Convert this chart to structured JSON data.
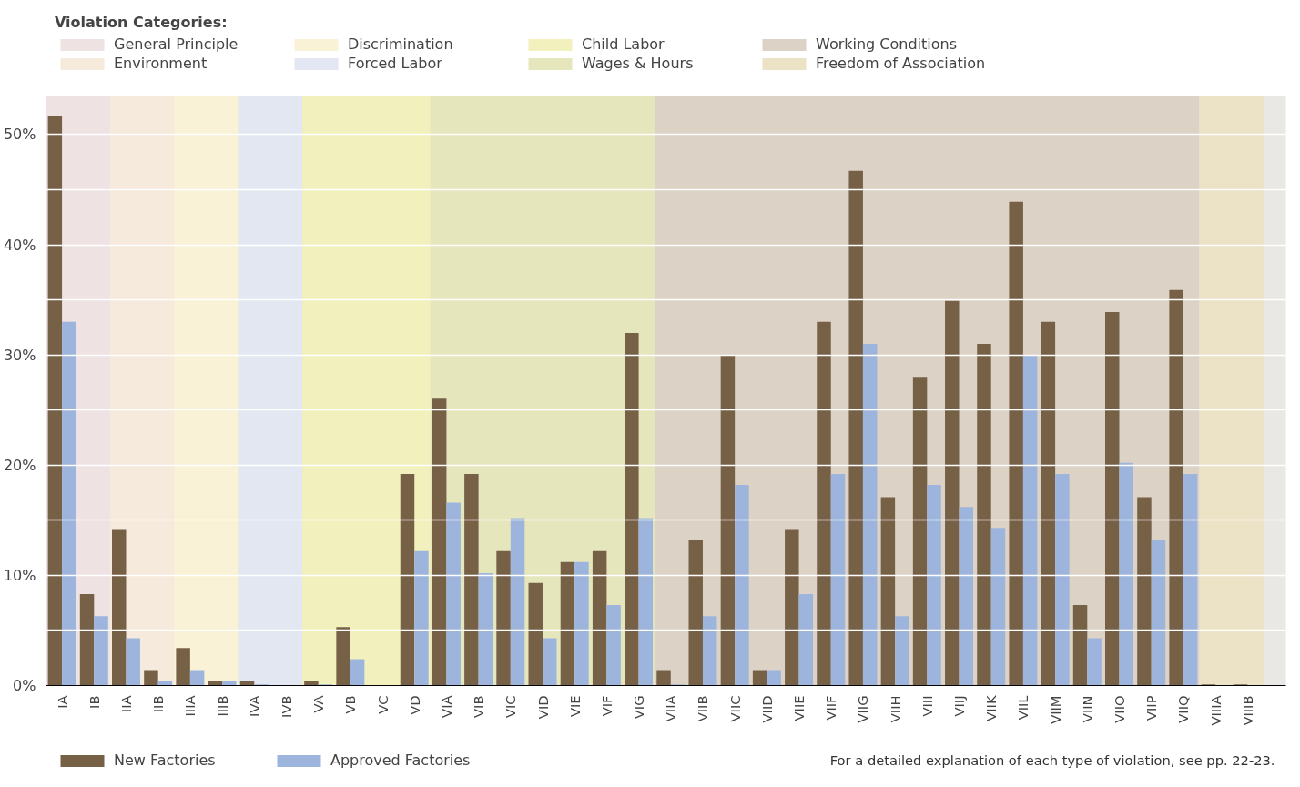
{
  "chart_data": {
    "type": "bar",
    "categories": [
      "IA",
      "IB",
      "IIA",
      "IIB",
      "IIIA",
      "IIIB",
      "IVA",
      "IVB",
      "VA",
      "VB",
      "VC",
      "VD",
      "VIA",
      "VIB",
      "VIC",
      "VID",
      "VIE",
      "VIF",
      "VIG",
      "VIIA",
      "VIIB",
      "VIIC",
      "VIID",
      "VIIE",
      "VIIF",
      "VIIG",
      "VIIH",
      "VIII",
      "VIIJ",
      "VIIK",
      "VIIL",
      "VIIM",
      "VIIN",
      "VIIO",
      "VIIP",
      "VIIQ",
      "VIIIA",
      "VIIIB"
    ],
    "series": [
      {
        "name": "New Factories",
        "color": "#766147",
        "values": [
          51.7,
          8.3,
          14.2,
          1.4,
          3.4,
          0.4,
          0.4,
          0,
          0.4,
          5.3,
          0,
          19.2,
          26.1,
          19.2,
          12.2,
          9.3,
          11.2,
          12.2,
          32.0,
          1.4,
          13.2,
          30.0,
          1.4,
          14.2,
          33.0,
          46.7,
          17.1,
          28.0,
          34.9,
          31.0,
          43.9,
          33.0,
          7.3,
          33.9,
          17.1,
          35.9,
          0.1,
          0.1
        ]
      },
      {
        "name": "Approved Factories",
        "color": "#9db5dc",
        "values": [
          33.0,
          6.3,
          4.3,
          0.4,
          1.4,
          0.4,
          0.1,
          0,
          0.1,
          2.4,
          0,
          12.2,
          16.6,
          10.2,
          15.2,
          4.3,
          11.2,
          7.3,
          15.2,
          0.1,
          6.3,
          18.2,
          1.4,
          8.3,
          19.2,
          31.0,
          6.3,
          18.2,
          16.2,
          14.3,
          30.0,
          19.2,
          4.3,
          20.2,
          13.2,
          19.2,
          0,
          0
        ]
      }
    ],
    "ylim": [
      0,
      53.5
    ],
    "yticks": [
      {
        "value": 0,
        "label": "0%"
      },
      {
        "value": 5,
        "label": null
      },
      {
        "value": 10,
        "label": "10%"
      },
      {
        "value": 15,
        "label": null
      },
      {
        "value": 20,
        "label": "20%"
      },
      {
        "value": 25,
        "label": null
      },
      {
        "value": 30,
        "label": "30%"
      },
      {
        "value": 35,
        "label": null
      },
      {
        "value": 40,
        "label": "40%"
      },
      {
        "value": 45,
        "label": null
      },
      {
        "value": 50,
        "label": "50%"
      }
    ],
    "grid": "y",
    "legend": "bottom",
    "legend_title": "Violation Categories:",
    "bands": [
      {
        "axis": "x",
        "from": "IA",
        "to": "IB",
        "label": "General Principle",
        "color": "#efe2e3"
      },
      {
        "axis": "x",
        "from": "IIA",
        "to": "IIB",
        "label": "Environment",
        "color": "#f5eadb"
      },
      {
        "axis": "x",
        "from": "IIIA",
        "to": "IIIB",
        "label": "Discrimination",
        "color": "#faf2d6"
      },
      {
        "axis": "x",
        "from": "IVA",
        "to": "IVB",
        "label": "Forced Labor",
        "color": "#e2e7f1"
      },
      {
        "axis": "x",
        "from": "VA",
        "to": "VD",
        "label": "Child Labor",
        "color": "#f2f0bc"
      },
      {
        "axis": "x",
        "from": "VIA",
        "to": "VIG",
        "label": "Wages & Hours",
        "color": "#e6e6bd"
      },
      {
        "axis": "x",
        "from": "VIIA",
        "to": "VIIQ",
        "label": "Working Conditions",
        "color": "#dcd2c6"
      },
      {
        "axis": "x",
        "from": "VIIIA",
        "to": "VIIIB",
        "label": "Freedom of Association",
        "color": "#ece2c6"
      }
    ],
    "annotations": [
      "For a detailed explanation of each type of violation, see pp. 22-23."
    ]
  }
}
